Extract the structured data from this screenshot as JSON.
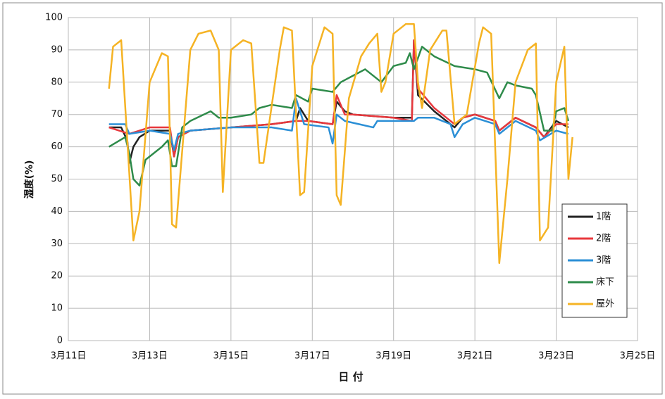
{
  "chart_data": {
    "type": "line",
    "x_label": "日 付",
    "y_label": "湿度(%)",
    "xlim": [
      11,
      25
    ],
    "xticks": [
      {
        "value": 11,
        "label": "3月11日"
      },
      {
        "value": 13,
        "label": "3月13日"
      },
      {
        "value": 15,
        "label": "3月15日"
      },
      {
        "value": 17,
        "label": "3月17日"
      },
      {
        "value": 19,
        "label": "3月19日"
      },
      {
        "value": 21,
        "label": "3月21日"
      },
      {
        "value": 23,
        "label": "3月23日"
      },
      {
        "value": 25,
        "label": "3月25日"
      }
    ],
    "ylim": [
      0,
      100
    ],
    "yticks": [
      0,
      10,
      20,
      30,
      40,
      50,
      60,
      70,
      80,
      90,
      100
    ],
    "grid": true,
    "legend": "right",
    "series": [
      {
        "name": "1階",
        "color": "#222222",
        "x": [
          12.0,
          12.3,
          12.45,
          12.5,
          12.6,
          12.75,
          13.0,
          13.5,
          13.6,
          13.7,
          14.0,
          15.0,
          16.0,
          16.6,
          16.7,
          16.9,
          17.5,
          17.6,
          17.8,
          18.0,
          19.0,
          19.45,
          19.5,
          19.6,
          20.0,
          20.5,
          20.7,
          21.0,
          21.5,
          21.6,
          22.0,
          22.5,
          22.7,
          23.0,
          23.3
        ],
        "values": [
          66,
          66,
          62,
          55,
          60,
          63,
          65,
          65,
          57,
          63,
          65,
          66,
          67,
          68,
          72,
          68,
          67,
          74,
          71,
          70,
          69,
          69,
          93,
          76,
          71,
          66,
          69,
          70,
          68,
          65,
          69,
          66,
          63,
          68,
          66
        ]
      },
      {
        "name": "2階",
        "color": "#e8383d",
        "x": [
          12.0,
          12.5,
          13.0,
          13.5,
          13.6,
          13.7,
          14.0,
          15.0,
          16.0,
          16.6,
          16.9,
          17.5,
          17.6,
          17.8,
          18.0,
          19.0,
          19.45,
          19.5,
          19.6,
          20.0,
          20.5,
          20.7,
          21.0,
          21.5,
          21.6,
          22.0,
          22.5,
          22.7,
          23.0,
          23.3
        ],
        "values": [
          66,
          64,
          66,
          66,
          57,
          63,
          65,
          66,
          67,
          68,
          68,
          67,
          76,
          70,
          70,
          69,
          68,
          93,
          78,
          72,
          67,
          69,
          70,
          68,
          65,
          69,
          66,
          63,
          67,
          67
        ]
      },
      {
        "name": "3階",
        "color": "#2b8fd6",
        "x": [
          12.0,
          12.4,
          12.5,
          13.0,
          13.5,
          13.6,
          13.7,
          14.0,
          15.0,
          16.0,
          16.5,
          16.6,
          16.8,
          17.4,
          17.5,
          17.6,
          17.8,
          18.5,
          18.6,
          19.0,
          19.5,
          19.6,
          20.0,
          20.4,
          20.5,
          20.7,
          21.0,
          21.5,
          21.6,
          22.0,
          22.5,
          22.6,
          23.0,
          23.3
        ],
        "values": [
          67,
          67,
          64,
          65,
          64,
          59,
          64,
          65,
          66,
          66,
          65,
          75,
          67,
          66,
          61,
          70,
          68,
          66,
          68,
          68,
          68,
          69,
          69,
          67,
          63,
          67,
          69,
          67,
          64,
          68,
          65,
          62,
          65,
          64
        ]
      },
      {
        "name": "床下",
        "color": "#2e8b4a",
        "x": [
          12.0,
          12.4,
          12.5,
          12.6,
          12.75,
          12.9,
          13.3,
          13.45,
          13.55,
          13.65,
          13.8,
          14.0,
          14.5,
          14.7,
          15.0,
          15.5,
          15.7,
          16.0,
          16.5,
          16.6,
          16.9,
          17.0,
          17.5,
          17.7,
          18.0,
          18.3,
          18.7,
          19.0,
          19.3,
          19.4,
          19.5,
          19.7,
          20.0,
          20.5,
          21.0,
          21.3,
          21.6,
          21.8,
          22.0,
          22.4,
          22.5,
          22.7,
          22.9,
          23.0,
          23.2,
          23.3
        ],
        "values": [
          60,
          63,
          58,
          50,
          48,
          56,
          60,
          62,
          54,
          54,
          66,
          68,
          71,
          69,
          69,
          70,
          72,
          73,
          72,
          76,
          74,
          78,
          77,
          80,
          82,
          84,
          80,
          85,
          86,
          89,
          84,
          91,
          88,
          85,
          84,
          83,
          75,
          80,
          79,
          78,
          76,
          65,
          65,
          71,
          72,
          68
        ]
      },
      {
        "name": "屋外",
        "color": "#f5b324",
        "x": [
          12.0,
          12.1,
          12.3,
          12.6,
          12.75,
          13.0,
          13.3,
          13.45,
          13.55,
          13.65,
          14.0,
          14.2,
          14.5,
          14.7,
          14.8,
          15.0,
          15.3,
          15.5,
          15.7,
          15.8,
          16.2,
          16.3,
          16.5,
          16.7,
          16.8,
          17.0,
          17.3,
          17.5,
          17.6,
          17.7,
          17.9,
          18.2,
          18.4,
          18.6,
          18.7,
          18.8,
          19.0,
          19.3,
          19.5,
          19.6,
          19.7,
          19.9,
          20.2,
          20.3,
          20.5,
          20.8,
          21.1,
          21.2,
          21.4,
          21.6,
          21.8,
          22.0,
          22.3,
          22.5,
          22.6,
          22.8,
          23.0,
          23.2,
          23.3,
          23.4
        ],
        "values": [
          78,
          91,
          93,
          31,
          40,
          80,
          89,
          88,
          36,
          35,
          90,
          95,
          96,
          90,
          46,
          90,
          93,
          92,
          55,
          55,
          90,
          97,
          96,
          45,
          46,
          85,
          97,
          95,
          45,
          42,
          75,
          88,
          92,
          95,
          77,
          80,
          95,
          98,
          98,
          80,
          72,
          90,
          96,
          96,
          67,
          70,
          92,
          97,
          95,
          24,
          50,
          80,
          90,
          92,
          31,
          35,
          80,
          91,
          50,
          63
        ]
      }
    ]
  }
}
